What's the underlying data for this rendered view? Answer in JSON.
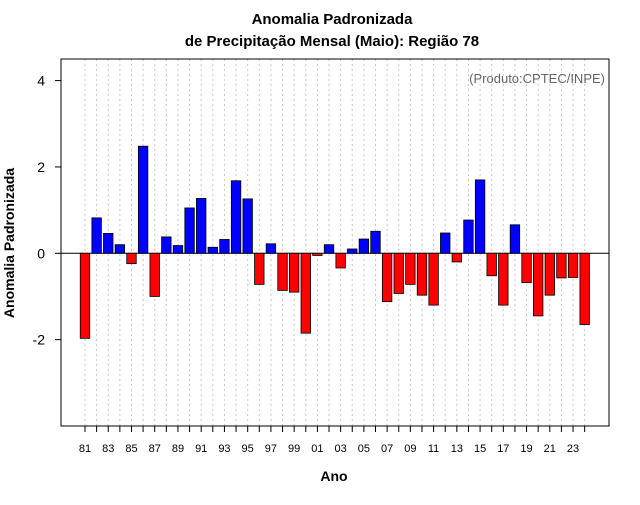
{
  "chart_data": {
    "type": "bar",
    "title_line1": "Anomalia Padronizada",
    "title_line2": "de Precipitação Mensal (Maio): Região 78",
    "xlabel": "Ano",
    "ylabel": "Anomalia Padronizada",
    "annotation": "(Produto:CPTEC/INPE)",
    "ylim": [
      -4,
      4.5
    ],
    "yticks": [
      4,
      2,
      0,
      -2
    ],
    "ytick_labels": [
      "4",
      "2",
      "0",
      "-2"
    ],
    "categories": [
      "81",
      "82",
      "83",
      "84",
      "85",
      "86",
      "87",
      "88",
      "89",
      "90",
      "91",
      "92",
      "93",
      "94",
      "95",
      "96",
      "97",
      "98",
      "99",
      "00",
      "01",
      "02",
      "03",
      "04",
      "05",
      "06",
      "07",
      "08",
      "09",
      "10",
      "11",
      "12",
      "13",
      "14",
      "15",
      "16",
      "17",
      "18",
      "19",
      "20",
      "21",
      "22",
      "23",
      "24"
    ],
    "xtick_labels": [
      "81",
      "83",
      "85",
      "87",
      "89",
      "91",
      "93",
      "95",
      "97",
      "99",
      "01",
      "03",
      "05",
      "07",
      "09",
      "11",
      "13",
      "15",
      "17",
      "19",
      "21",
      "23"
    ],
    "values": [
      -1.97,
      0.82,
      0.46,
      0.2,
      -0.24,
      2.48,
      -1.0,
      0.38,
      0.18,
      1.05,
      1.27,
      0.14,
      0.32,
      1.68,
      1.26,
      -0.72,
      0.22,
      -0.86,
      -0.9,
      -1.85,
      -0.05,
      0.2,
      -0.34,
      0.1,
      0.33,
      0.51,
      -1.12,
      -0.93,
      -0.72,
      -0.97,
      -1.2,
      0.47,
      -0.2,
      0.77,
      1.7,
      -0.52,
      -1.2,
      0.66,
      -0.68,
      -1.45,
      -0.97,
      -0.57,
      -0.56,
      -1.65
    ],
    "colors": {
      "positive": "#0000ff",
      "negative": "#ff0000",
      "grid": "#c8c8c8",
      "axis": "#000000",
      "annotation": "#666666"
    }
  }
}
